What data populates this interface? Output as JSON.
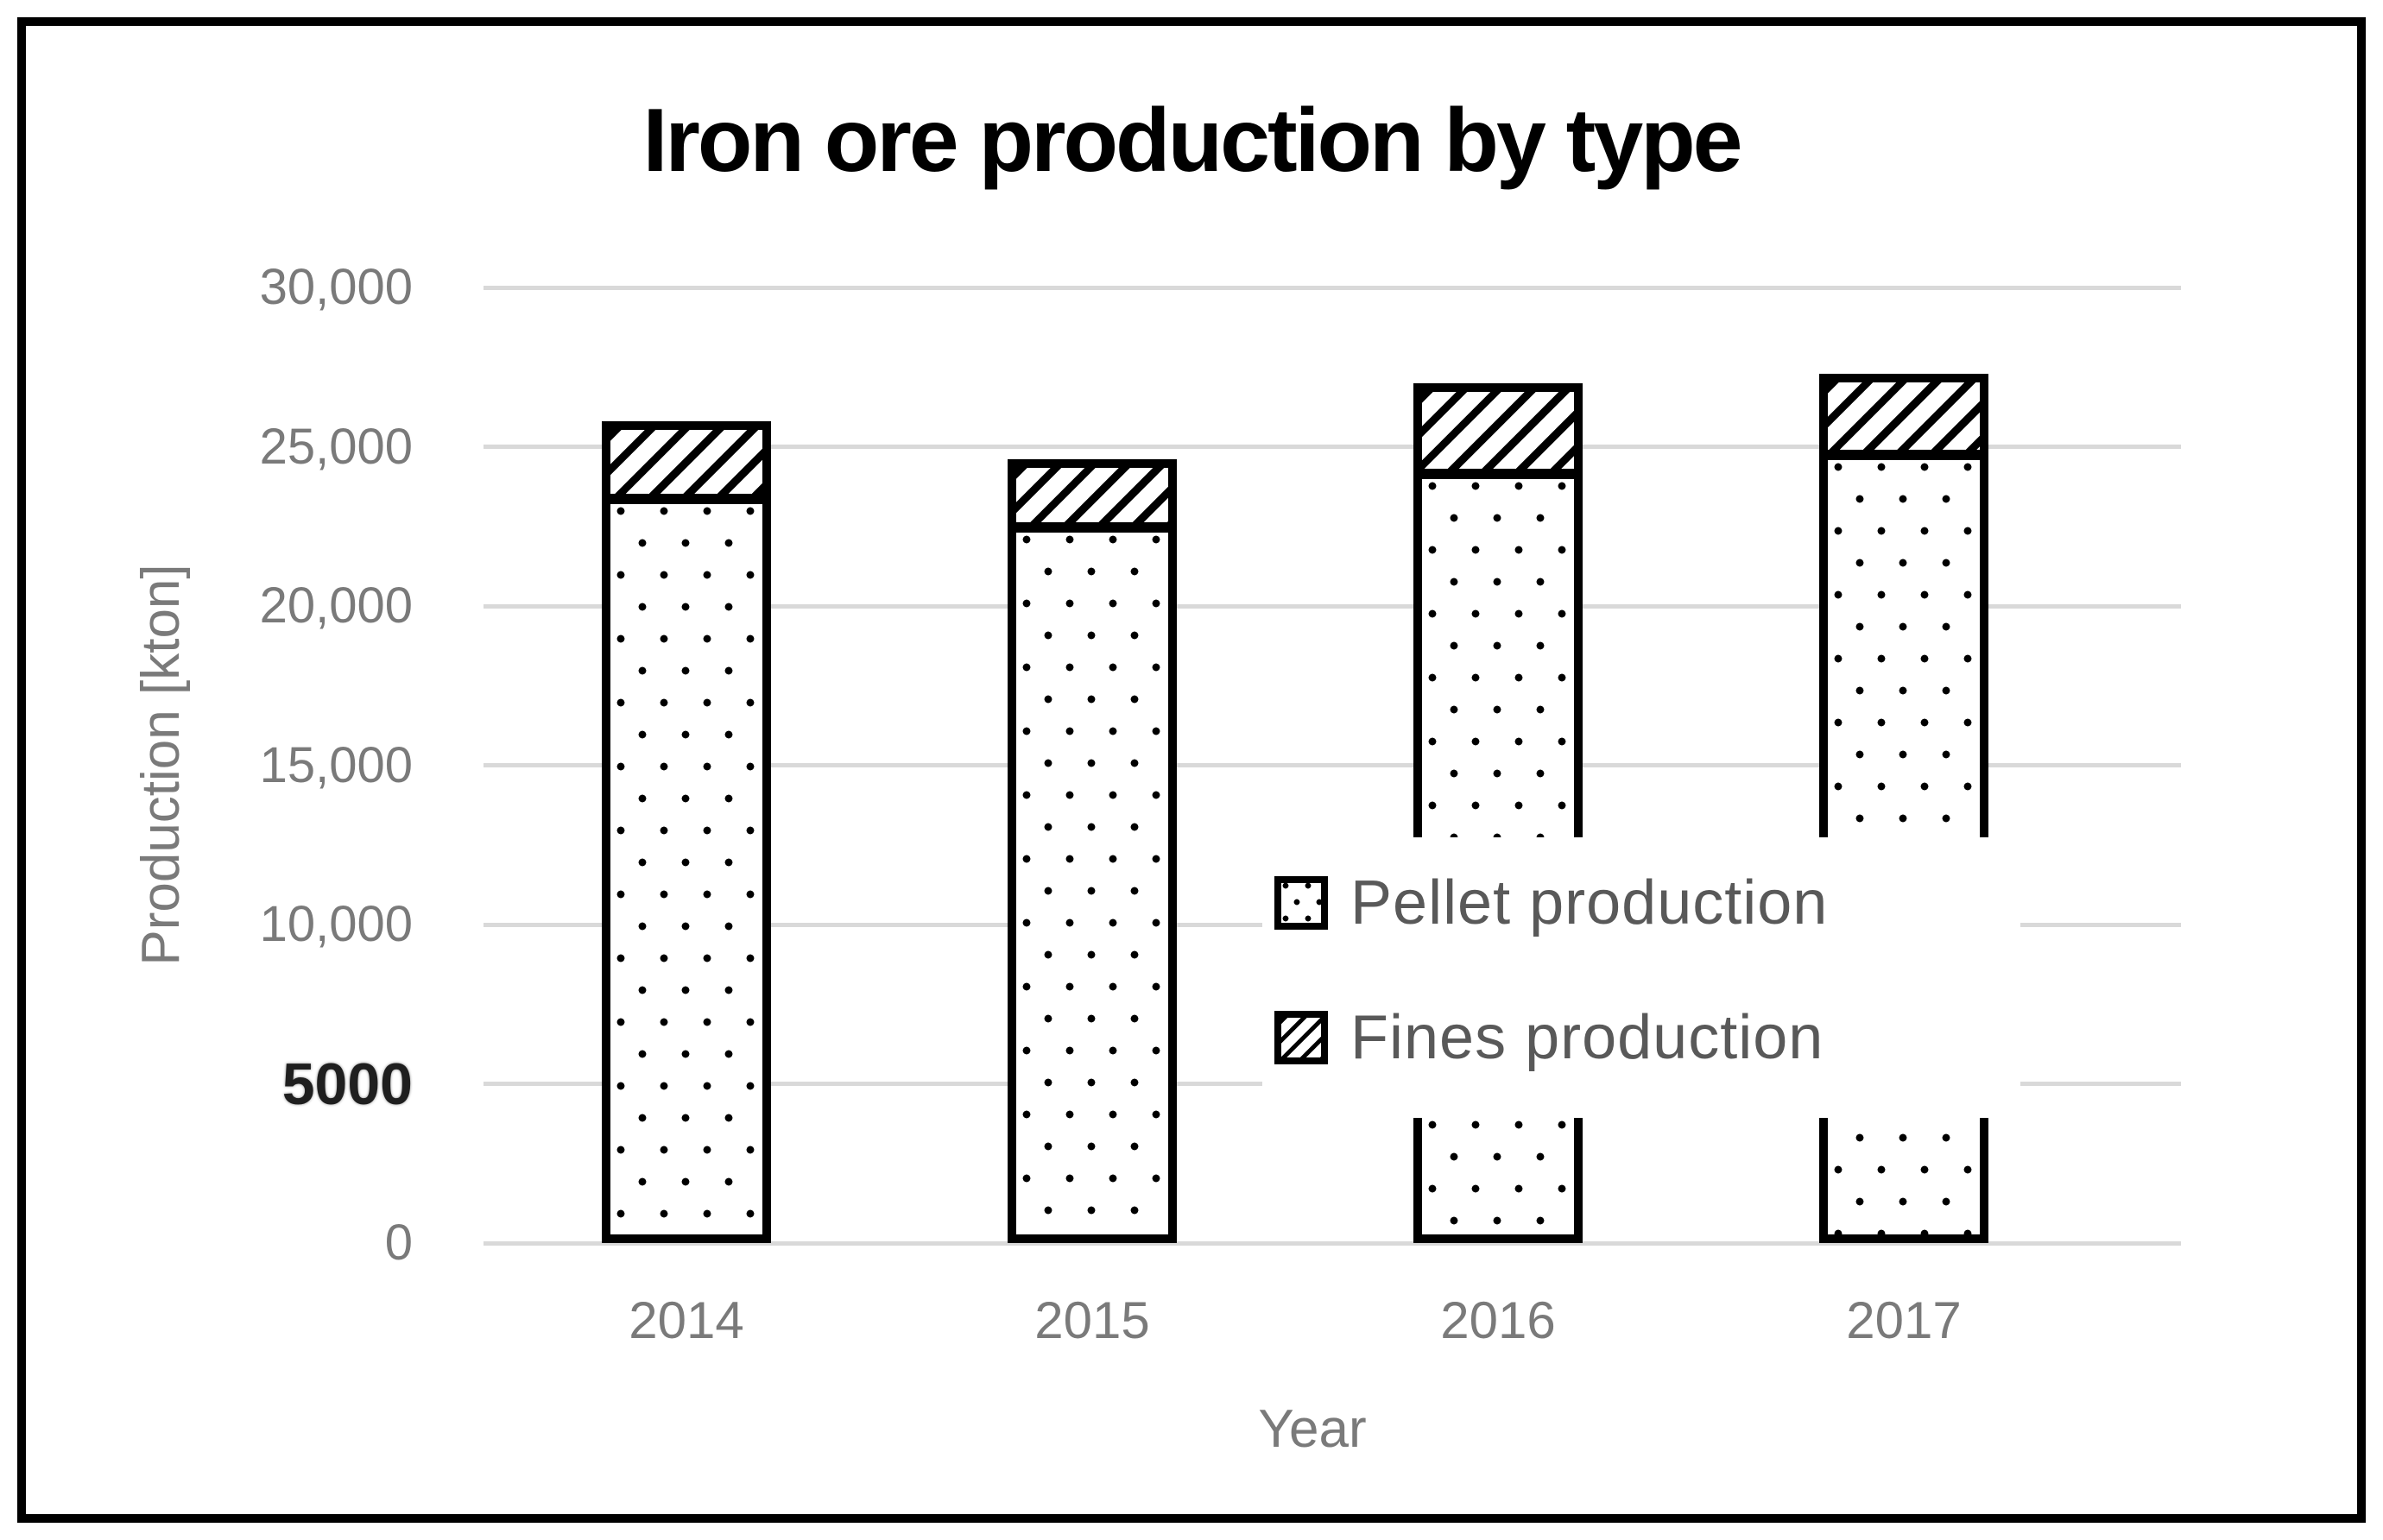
{
  "chart_data": {
    "type": "bar",
    "stacked": true,
    "title": "Iron ore production by type",
    "xlabel": "Year",
    "ylabel": "Production [kton]",
    "categories": [
      "2014",
      "2015",
      "2016",
      "2017"
    ],
    "series": [
      {
        "name": "Pellet production",
        "pattern": "dotted",
        "values": [
          23200,
          22300,
          24000,
          24600
        ]
      },
      {
        "name": "Fines production",
        "pattern": "diagonal-hatch",
        "values": [
          2600,
          2300,
          3000,
          2700
        ]
      }
    ],
    "ylim": [
      0,
      30000
    ],
    "ytick_step": 5000,
    "ytick_labels_top_to_bottom": [
      "30,000",
      "25,000",
      "20,000",
      "15,000",
      "10,000",
      "5000",
      "0"
    ],
    "ytick_bold_label": "5000",
    "grid": "horizontal",
    "legend_position": "inside-right",
    "colors": {
      "bar_fill": "#ffffff",
      "bar_border": "#000000",
      "gridline": "#d9d9d9",
      "axis_text": "#7a7a7a",
      "legend_text": "#595959",
      "title_text": "#000000",
      "frame_border": "#000000"
    }
  }
}
